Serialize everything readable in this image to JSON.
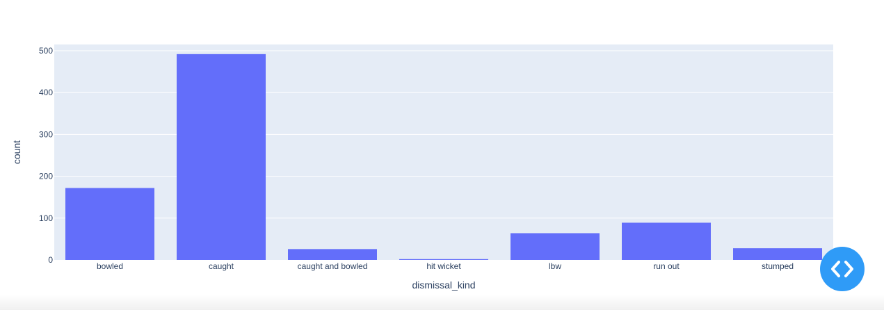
{
  "chart_data": {
    "type": "bar",
    "categories": [
      "bowled",
      "caught",
      "caught and bowled",
      "hit wicket",
      "lbw",
      "run out",
      "stumped"
    ],
    "values": [
      172,
      492,
      26,
      2,
      64,
      89,
      28
    ],
    "xlabel": "dismissal_kind",
    "ylabel": "count",
    "ylim": [
      0,
      515
    ],
    "yticks": [
      0,
      100,
      200,
      300,
      400,
      500
    ],
    "grid": true,
    "colors": {
      "bar": "#636efa",
      "plot_background": "#e5ecf6",
      "grid": "#ffffff",
      "text": "#2a3f5f"
    }
  },
  "code_toggle": {
    "icon": "code-brackets-icon",
    "color": "#2f9bf7"
  }
}
